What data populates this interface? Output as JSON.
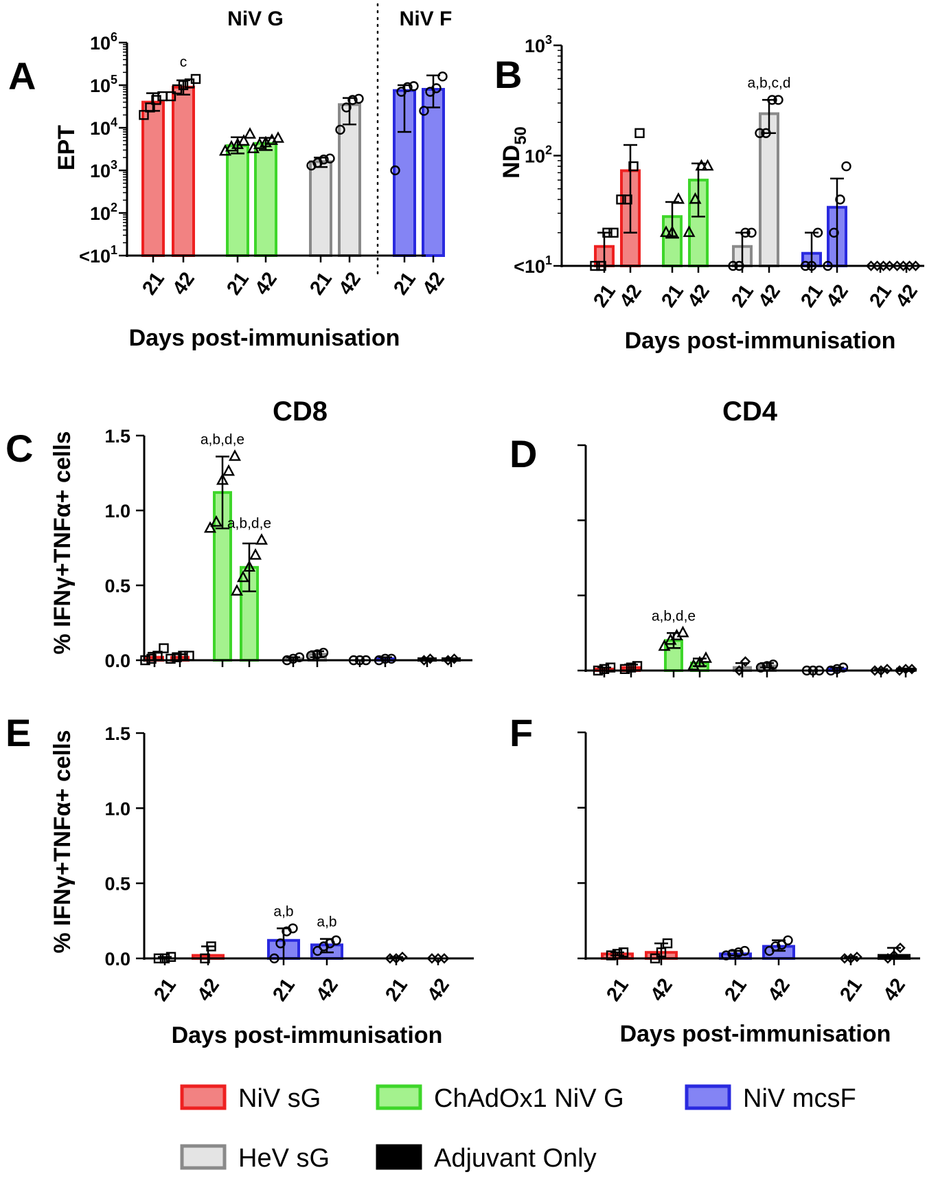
{
  "chart_data": [
    {
      "panel": "A",
      "type": "bar",
      "title_groups": [
        "NiV G",
        "NiV F"
      ],
      "ylabel": "EPT",
      "xlabel": "Days post-immunisation",
      "yscale": "log",
      "ylim": [
        10,
        1000000
      ],
      "yticks": [
        {
          "value": 1000000,
          "base": "10",
          "exp": "6"
        },
        {
          "value": 100000,
          "base": "10",
          "exp": "5"
        },
        {
          "value": 10000,
          "base": "10",
          "exp": "4"
        },
        {
          "value": 1000,
          "base": "10",
          "exp": "3"
        },
        {
          "value": 100,
          "base": "10",
          "exp": "2"
        },
        {
          "value": 10,
          "base": "<10",
          "exp": "1"
        }
      ],
      "categories": [
        "21",
        "42",
        "21",
        "42",
        "21",
        "42",
        "21",
        "42"
      ],
      "bars": [
        {
          "group": "NiV sG",
          "day": "21",
          "value": 40000,
          "err": [
            25000,
            65000
          ],
          "marker": "square",
          "points": [
            20000,
            30000,
            45000,
            55000
          ]
        },
        {
          "group": "NiV sG",
          "day": "42",
          "value": 90000,
          "err": [
            60000,
            130000
          ],
          "marker": "square",
          "points": [
            55000,
            80000,
            100000,
            110000,
            140000
          ],
          "annotation": "c"
        },
        {
          "group": "ChAdOx1 NiV G",
          "day": "21",
          "value": 3800,
          "err": [
            2500,
            6000
          ],
          "marker": "triangle",
          "points": [
            2800,
            3500,
            4000,
            4800,
            7000
          ]
        },
        {
          "group": "ChAdOx1 NiV G",
          "day": "42",
          "value": 4300,
          "err": [
            3000,
            5800
          ],
          "marker": "triangle",
          "points": [
            3200,
            4000,
            4400,
            5000,
            5600
          ]
        },
        {
          "group": "HeV sG",
          "day": "21",
          "value": 1600,
          "err": [
            1200,
            2000
          ],
          "marker": "circle",
          "points": [
            1300,
            1500,
            1800,
            1900
          ]
        },
        {
          "group": "HeV sG",
          "day": "42",
          "value": 35000,
          "err": [
            12000,
            50000
          ],
          "marker": "circle",
          "points": [
            9000,
            30000,
            45000,
            48000
          ]
        },
        {
          "group": "NiV mcsF",
          "day": "21",
          "value": 75000,
          "err": [
            8000,
            100000
          ],
          "marker": "circle",
          "points": [
            1000,
            70000,
            90000,
            95000
          ]
        },
        {
          "group": "NiV mcsF",
          "day": "42",
          "value": 80000,
          "err": [
            30000,
            170000
          ],
          "marker": "circle",
          "points": [
            25000,
            70000,
            85000,
            160000
          ]
        }
      ]
    },
    {
      "panel": "B",
      "type": "bar",
      "ylabel": "ND50",
      "ylabel_main": "ND",
      "ylabel_sub": "50",
      "xlabel": "Days post-immunisation",
      "yscale": "log",
      "ylim": [
        10,
        1000
      ],
      "yticks": [
        {
          "value": 1000,
          "base": "10",
          "exp": "3"
        },
        {
          "value": 100,
          "base": "10",
          "exp": "2"
        },
        {
          "value": 10,
          "base": "<10",
          "exp": "1"
        }
      ],
      "categories": [
        "21",
        "42",
        "21",
        "42",
        "21",
        "42",
        "21",
        "42",
        "21",
        "42"
      ],
      "bars": [
        {
          "group": "NiV sG",
          "day": "21",
          "value": 15,
          "err": [
            10,
            20
          ],
          "marker": "square",
          "points": [
            10,
            10,
            20,
            20
          ]
        },
        {
          "group": "NiV sG",
          "day": "42",
          "value": 73,
          "err": [
            20,
            125
          ],
          "marker": "square",
          "points": [
            40,
            40,
            80,
            160
          ]
        },
        {
          "group": "ChAdOx1 NiV G",
          "day": "21",
          "value": 28,
          "err": [
            18,
            38
          ],
          "marker": "triangle",
          "points": [
            20,
            20,
            40
          ]
        },
        {
          "group": "ChAdOx1 NiV G",
          "day": "42",
          "value": 60,
          "err": [
            28,
            85
          ],
          "marker": "triangle",
          "points": [
            20,
            40,
            80,
            80
          ]
        },
        {
          "group": "HeV sG",
          "day": "21",
          "value": 15,
          "err": [
            10,
            20
          ],
          "marker": "circle",
          "points": [
            10,
            10,
            20,
            20
          ]
        },
        {
          "group": "HeV sG",
          "day": "42",
          "value": 240,
          "err": [
            160,
            320
          ],
          "marker": "circle",
          "points": [
            160,
            160,
            320,
            320
          ],
          "annotation": "a,b,c,d"
        },
        {
          "group": "NiV mcsF",
          "day": "21",
          "value": 13,
          "err": [
            10,
            20
          ],
          "marker": "circle",
          "points": [
            10,
            10,
            20
          ]
        },
        {
          "group": "NiV mcsF",
          "day": "42",
          "value": 34,
          "err": [
            10,
            62
          ],
          "marker": "circle",
          "points": [
            10,
            20,
            40,
            80
          ]
        },
        {
          "group": "Adjuvant Only",
          "day": "21",
          "value": 10,
          "err": [
            10,
            10
          ],
          "marker": "diamond",
          "points": [
            10,
            10,
            10,
            10
          ]
        },
        {
          "group": "Adjuvant Only",
          "day": "42",
          "value": 10,
          "err": [
            10,
            10
          ],
          "marker": "diamond",
          "points": [
            10,
            10,
            10,
            10
          ]
        }
      ]
    },
    {
      "panel": "C",
      "type": "bar",
      "title": "CD8",
      "ylabel": "% IFNγ+TNFα+ cells",
      "ylim": [
        0,
        1.5
      ],
      "yticks": [
        "0.0",
        "0.5",
        "1.0",
        "1.5"
      ],
      "bars": [
        {
          "group": "NiV sG",
          "day": "21",
          "value": 0.02,
          "err": [
            0.0,
            0.05
          ],
          "marker": "square",
          "points": [
            0.0,
            0.01,
            0.03,
            0.08
          ]
        },
        {
          "group": "NiV sG",
          "day": "42",
          "value": 0.02,
          "err": [
            0.0,
            0.04
          ],
          "marker": "square",
          "points": [
            0.01,
            0.02,
            0.03,
            0.03
          ]
        },
        {
          "group": "ChAdOx1 NiV G",
          "day": "21",
          "value": 1.12,
          "err": [
            0.88,
            1.36
          ],
          "marker": "triangle",
          "points": [
            0.88,
            0.92,
            1.2,
            1.26,
            1.36
          ],
          "annotation": "a,b,d,e"
        },
        {
          "group": "ChAdOx1 NiV G",
          "day": "42",
          "value": 0.62,
          "err": [
            0.46,
            0.78
          ],
          "marker": "triangle",
          "points": [
            0.46,
            0.55,
            0.62,
            0.7,
            0.8
          ],
          "annotation": "a,b,d,e"
        },
        {
          "group": "HeV sG",
          "day": "21",
          "value": 0.01,
          "err": [
            0.0,
            0.02
          ],
          "marker": "circle",
          "points": [
            0.0,
            0.01,
            0.02
          ]
        },
        {
          "group": "HeV sG",
          "day": "42",
          "value": 0.04,
          "err": [
            0.02,
            0.06
          ],
          "marker": "circle",
          "points": [
            0.03,
            0.04,
            0.05
          ]
        },
        {
          "group": "NiV mcsF",
          "day": "21",
          "value": 0.0,
          "err": [
            0.0,
            0.0
          ],
          "marker": "circle",
          "points": [
            0.0,
            0.0,
            0.0
          ]
        },
        {
          "group": "NiV mcsF",
          "day": "42",
          "value": 0.01,
          "err": [
            0.0,
            0.02
          ],
          "marker": "circle",
          "points": [
            0.0,
            0.01,
            0.01
          ]
        },
        {
          "group": "Adjuvant Only",
          "day": "21",
          "value": 0.01,
          "err": [
            0.0,
            0.01
          ],
          "marker": "diamond",
          "points": [
            0.0,
            0.01
          ]
        },
        {
          "group": "Adjuvant Only",
          "day": "42",
          "value": 0.01,
          "err": [
            0.0,
            0.01
          ],
          "marker": "diamond",
          "points": [
            0.0,
            0.01
          ]
        }
      ]
    },
    {
      "panel": "D",
      "type": "bar",
      "title": "CD4",
      "ylim": [
        0,
        1.5
      ],
      "bars": [
        {
          "group": "NiV sG",
          "day": "21",
          "value": 0.01,
          "err": [
            0.0,
            0.02
          ],
          "marker": "square",
          "points": [
            0.0,
            0.01,
            0.02
          ]
        },
        {
          "group": "NiV sG",
          "day": "42",
          "value": 0.02,
          "err": [
            0.0,
            0.04
          ],
          "marker": "square",
          "points": [
            0.01,
            0.02,
            0.03
          ]
        },
        {
          "group": "ChAdOx1 NiV G",
          "day": "21",
          "value": 0.2,
          "err": [
            0.15,
            0.25
          ],
          "marker": "triangle",
          "points": [
            0.16,
            0.2,
            0.23,
            0.25
          ],
          "annotation": "a,b,d,e"
        },
        {
          "group": "ChAdOx1 NiV G",
          "day": "42",
          "value": 0.05,
          "err": [
            0.03,
            0.08
          ],
          "marker": "triangle",
          "points": [
            0.03,
            0.05,
            0.08
          ]
        },
        {
          "group": "HeV sG",
          "day": "21",
          "value": 0.02,
          "err": [
            0.0,
            0.05
          ],
          "marker": "diamond",
          "points": [
            0.0,
            0.06
          ]
        },
        {
          "group": "HeV sG",
          "day": "42",
          "value": 0.03,
          "err": [
            0.02,
            0.05
          ],
          "marker": "circle",
          "points": [
            0.02,
            0.03,
            0.04
          ]
        },
        {
          "group": "NiV mcsF",
          "day": "21",
          "value": 0.0,
          "err": [
            0.0,
            0.0
          ],
          "marker": "circle",
          "points": [
            0.0,
            0.0,
            0.0
          ]
        },
        {
          "group": "NiV mcsF",
          "day": "42",
          "value": 0.01,
          "err": [
            0.0,
            0.02
          ],
          "marker": "circle",
          "points": [
            0.0,
            0.01,
            0.02
          ]
        },
        {
          "group": "Adjuvant Only",
          "day": "21",
          "value": 0.0,
          "err": [
            0.0,
            0.01
          ],
          "marker": "diamond",
          "points": [
            0.0,
            0.0,
            0.01
          ]
        },
        {
          "group": "Adjuvant Only",
          "day": "42",
          "value": 0.01,
          "err": [
            0.0,
            0.01
          ],
          "marker": "diamond",
          "points": [
            0.0,
            0.01,
            0.01
          ]
        }
      ]
    },
    {
      "panel": "E",
      "type": "bar",
      "ylabel": "% IFNγ+TNFα+ cells",
      "xlabel": "Days post-immunisation",
      "ylim": [
        0,
        1.5
      ],
      "yticks": [
        "0.0",
        "0.5",
        "1.0",
        "1.5"
      ],
      "categories": [
        "21",
        "42",
        "21",
        "42",
        "21",
        "42"
      ],
      "bars": [
        {
          "group": "NiV sG",
          "day": "21",
          "value": 0.0,
          "err": [
            0.0,
            0.01
          ],
          "marker": "square",
          "points": [
            0.0,
            0.0,
            0.01
          ]
        },
        {
          "group": "NiV sG",
          "day": "42",
          "value": 0.02,
          "err": [
            0.0,
            0.08
          ],
          "marker": "square",
          "points": [
            0.0,
            0.08
          ]
        },
        {
          "group": "NiV mcsF",
          "day": "21",
          "value": 0.12,
          "err": [
            0.0,
            0.2
          ],
          "marker": "circle",
          "points": [
            0.0,
            0.1,
            0.18,
            0.2
          ],
          "annotation": "a,b"
        },
        {
          "group": "NiV mcsF",
          "day": "42",
          "value": 0.09,
          "err": [
            0.04,
            0.13
          ],
          "marker": "circle",
          "points": [
            0.05,
            0.08,
            0.1,
            0.12
          ],
          "annotation": "a,b"
        },
        {
          "group": "Adjuvant Only",
          "day": "21",
          "value": 0.0,
          "err": [
            0.0,
            0.01
          ],
          "marker": "diamond",
          "points": [
            0.0,
            0.0,
            0.01
          ]
        },
        {
          "group": "Adjuvant Only",
          "day": "42",
          "value": 0.0,
          "err": [
            0.0,
            0.0
          ],
          "marker": "diamond",
          "points": [
            0.0,
            0.0,
            0.0
          ]
        }
      ]
    },
    {
      "panel": "F",
      "type": "bar",
      "xlabel": "Days post-immunisation",
      "ylim": [
        0,
        1.5
      ],
      "categories": [
        "21",
        "42",
        "21",
        "42",
        "21",
        "42"
      ],
      "bars": [
        {
          "group": "NiV sG",
          "day": "21",
          "value": 0.03,
          "err": [
            0.02,
            0.04
          ],
          "marker": "square",
          "points": [
            0.02,
            0.03,
            0.04
          ]
        },
        {
          "group": "NiV sG",
          "day": "42",
          "value": 0.04,
          "err": [
            0.0,
            0.1
          ],
          "marker": "square",
          "points": [
            0.0,
            0.04,
            0.1
          ]
        },
        {
          "group": "NiV mcsF",
          "day": "21",
          "value": 0.03,
          "err": [
            0.02,
            0.05
          ],
          "marker": "circle",
          "points": [
            0.02,
            0.03,
            0.04,
            0.05
          ]
        },
        {
          "group": "NiV mcsF",
          "day": "42",
          "value": 0.08,
          "err": [
            0.05,
            0.12
          ],
          "marker": "circle",
          "points": [
            0.05,
            0.08,
            0.09,
            0.12
          ]
        },
        {
          "group": "Adjuvant Only",
          "day": "21",
          "value": 0.0,
          "err": [
            0.0,
            0.01
          ],
          "marker": "diamond",
          "points": [
            0.0,
            0.0,
            0.01
          ]
        },
        {
          "group": "Adjuvant Only",
          "day": "42",
          "value": 0.02,
          "err": [
            0.0,
            0.07
          ],
          "marker": "diamond",
          "points": [
            0.0,
            0.02,
            0.07
          ]
        }
      ]
    }
  ],
  "legend": [
    {
      "label": "NiV sG",
      "fill": "#f28282",
      "stroke": "#ee2121"
    },
    {
      "label": "ChAdOx1 NiV G",
      "fill": "#a4f28e",
      "stroke": "#3ed62a"
    },
    {
      "label": "NiV mcsF",
      "fill": "#8484f4",
      "stroke": "#2a2adf"
    },
    {
      "label": "HeV sG",
      "fill": "#e4e4e4",
      "stroke": "#8a8a8a"
    },
    {
      "label": "Adjuvant Only",
      "fill": "#000000",
      "stroke": "#000000"
    }
  ],
  "colors": {
    "NiV sG": {
      "fill": "#f28282",
      "stroke": "#ee2121"
    },
    "ChAdOx1 NiV G": {
      "fill": "#a4f28e",
      "stroke": "#3ed62a"
    },
    "HeV sG": {
      "fill": "#e4e4e4",
      "stroke": "#8a8a8a"
    },
    "NiV mcsF": {
      "fill": "#8484f4",
      "stroke": "#2a2adf"
    },
    "Adjuvant Only": {
      "fill": "#000000",
      "stroke": "#000000"
    }
  }
}
